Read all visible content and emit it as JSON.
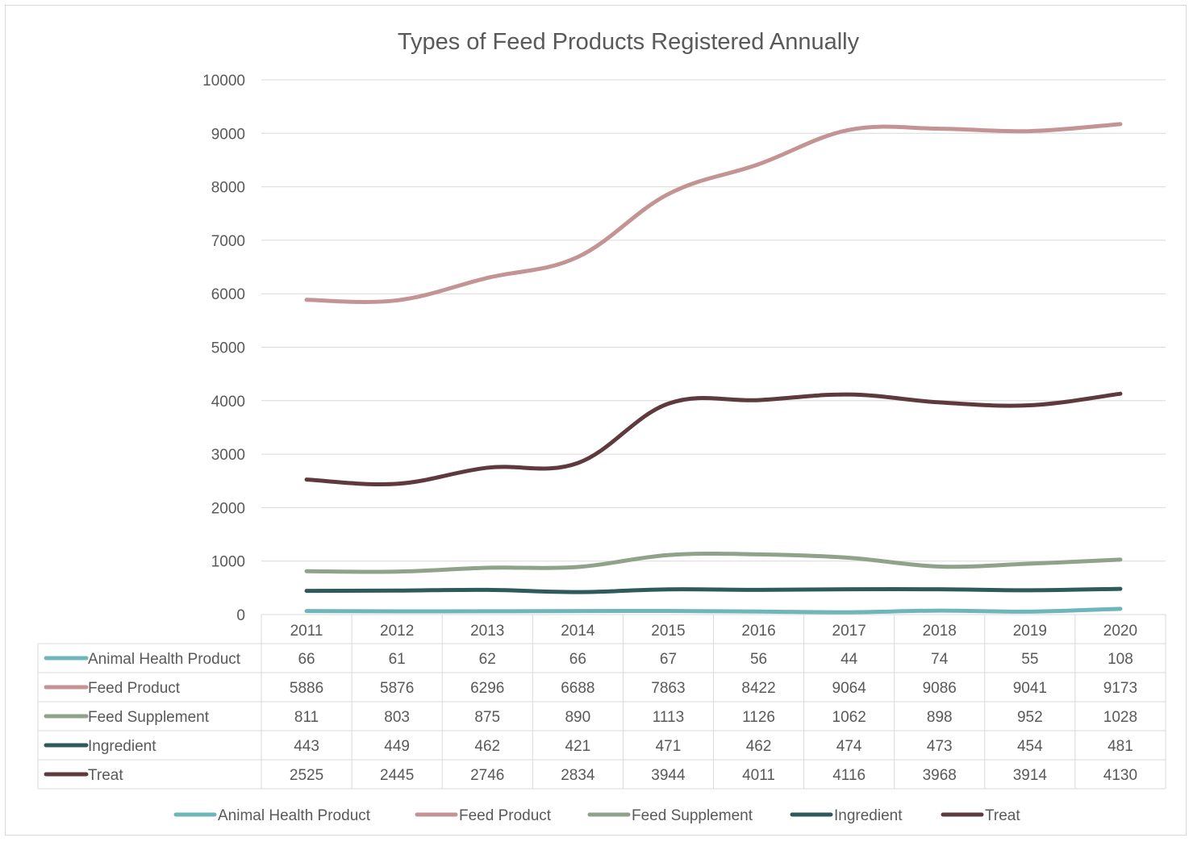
{
  "chart_data": {
    "type": "line",
    "title": "Types of Feed Products Registered Annually",
    "xlabel": "",
    "ylabel": "",
    "ylim": [
      0,
      10000
    ],
    "yticks": [
      0,
      1000,
      2000,
      3000,
      4000,
      5000,
      6000,
      7000,
      8000,
      9000,
      10000
    ],
    "grid": true,
    "legend_position": "bottom",
    "data_table": true,
    "categories": [
      "2011",
      "2012",
      "2013",
      "2014",
      "2015",
      "2016",
      "2017",
      "2018",
      "2019",
      "2020"
    ],
    "series": [
      {
        "name": "Animal Health Product",
        "color": "#6fb6bb",
        "values": [
          66,
          61,
          62,
          66,
          67,
          56,
          44,
          74,
          55,
          108
        ]
      },
      {
        "name": "Feed Product",
        "color": "#c49393",
        "values": [
          5886,
          5876,
          6296,
          6688,
          7863,
          8422,
          9064,
          9086,
          9041,
          9173
        ]
      },
      {
        "name": "Feed Supplement",
        "color": "#8fa38b",
        "values": [
          811,
          803,
          875,
          890,
          1113,
          1126,
          1062,
          898,
          952,
          1028
        ]
      },
      {
        "name": "Ingredient",
        "color": "#2e5a5c",
        "values": [
          443,
          449,
          462,
          421,
          471,
          462,
          474,
          473,
          454,
          481
        ]
      },
      {
        "name": "Treat",
        "color": "#5e3a3e",
        "values": [
          2525,
          2445,
          2746,
          2834,
          3944,
          4011,
          4116,
          3968,
          3914,
          4130
        ]
      }
    ]
  }
}
